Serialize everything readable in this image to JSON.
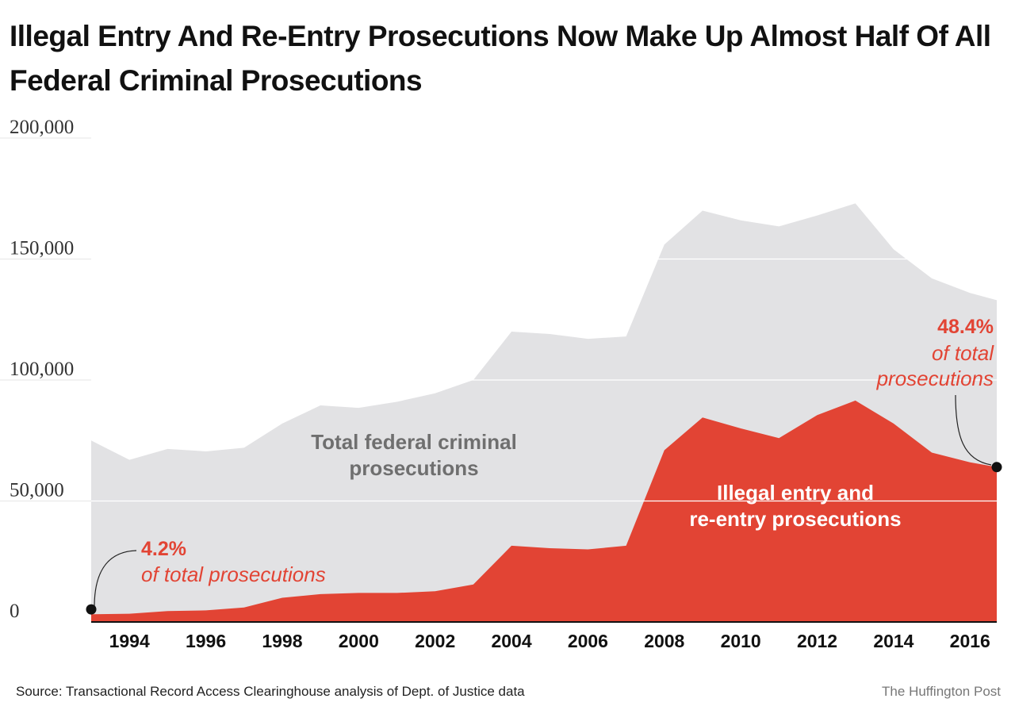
{
  "title": "Illegal Entry And Re-Entry Prosecutions Now Make Up Almost Half Of All Federal Criminal Prosecutions",
  "source": "Source: Transactional Record Access Clearinghouse analysis of Dept. of Justice data",
  "credit": "The Huffington Post",
  "colors": {
    "total": "#e2e2e4",
    "illegal": "#e24434",
    "label_grey": "#6f6f6f",
    "grid": "#ffffff"
  },
  "chart_data": {
    "type": "area",
    "title": "Illegal Entry And Re-Entry Prosecutions Now Make Up Almost Half Of All Federal Criminal Prosecutions",
    "xlabel": "",
    "ylabel": "",
    "xlim": [
      1993,
      2016.7
    ],
    "ylim": [
      0,
      200000
    ],
    "grid": true,
    "x_ticks": [
      "1994",
      "1996",
      "1998",
      "2000",
      "2002",
      "2004",
      "2006",
      "2008",
      "2010",
      "2012",
      "2014",
      "2016"
    ],
    "x_tick_values": [
      1994,
      1996,
      1998,
      2000,
      2002,
      2004,
      2006,
      2008,
      2010,
      2012,
      2014,
      2016
    ],
    "y_ticks": [
      "0",
      "50,000",
      "100,000",
      "150,000",
      "200,000"
    ],
    "y_tick_values": [
      0,
      50000,
      100000,
      150000,
      200000
    ],
    "series": [
      {
        "name": "Total federal criminal prosecutions",
        "x": [
          1993,
          1994,
          1995,
          1996,
          1997,
          1998,
          1999,
          2000,
          2001,
          2002,
          2003,
          2004,
          2005,
          2006,
          2007,
          2008,
          2009,
          2010,
          2011,
          2012,
          2013,
          2014,
          2015,
          2016,
          2016.7
        ],
        "values": [
          75000,
          67000,
          71500,
          70500,
          72000,
          82000,
          89500,
          88500,
          91000,
          94500,
          100000,
          120000,
          119000,
          117000,
          118000,
          156000,
          170000,
          166000,
          163500,
          168000,
          173000,
          154000,
          142000,
          136000,
          133000
        ]
      },
      {
        "name": "Illegal entry and re-entry prosecutions",
        "x": [
          1993,
          1994,
          1995,
          1996,
          1997,
          1998,
          1999,
          2000,
          2001,
          2002,
          2003,
          2004,
          2005,
          2006,
          2007,
          2008,
          2009,
          2010,
          2011,
          2012,
          2013,
          2014,
          2015,
          2016,
          2016.7
        ],
        "values": [
          3200,
          3400,
          4500,
          4800,
          6000,
          10000,
          11500,
          12000,
          12000,
          12700,
          15500,
          31500,
          30500,
          30000,
          31500,
          71000,
          84500,
          80000,
          76000,
          85500,
          91500,
          82000,
          70000,
          66000,
          64000
        ]
      }
    ],
    "annotations": [
      {
        "big": "4.2%",
        "small": "of total prosecutions",
        "point_x": 1993,
        "point_y": 5200
      },
      {
        "big": "48.4%",
        "small_line1": "of total",
        "small_line2": "prosecutions",
        "point_x": 2016.7,
        "point_y": 64000
      }
    ],
    "area_labels": {
      "total_line1": "Total federal criminal",
      "total_line2": "prosecutions",
      "illegal_line1": "Illegal entry and",
      "illegal_line2": "re-entry prosecutions"
    }
  }
}
